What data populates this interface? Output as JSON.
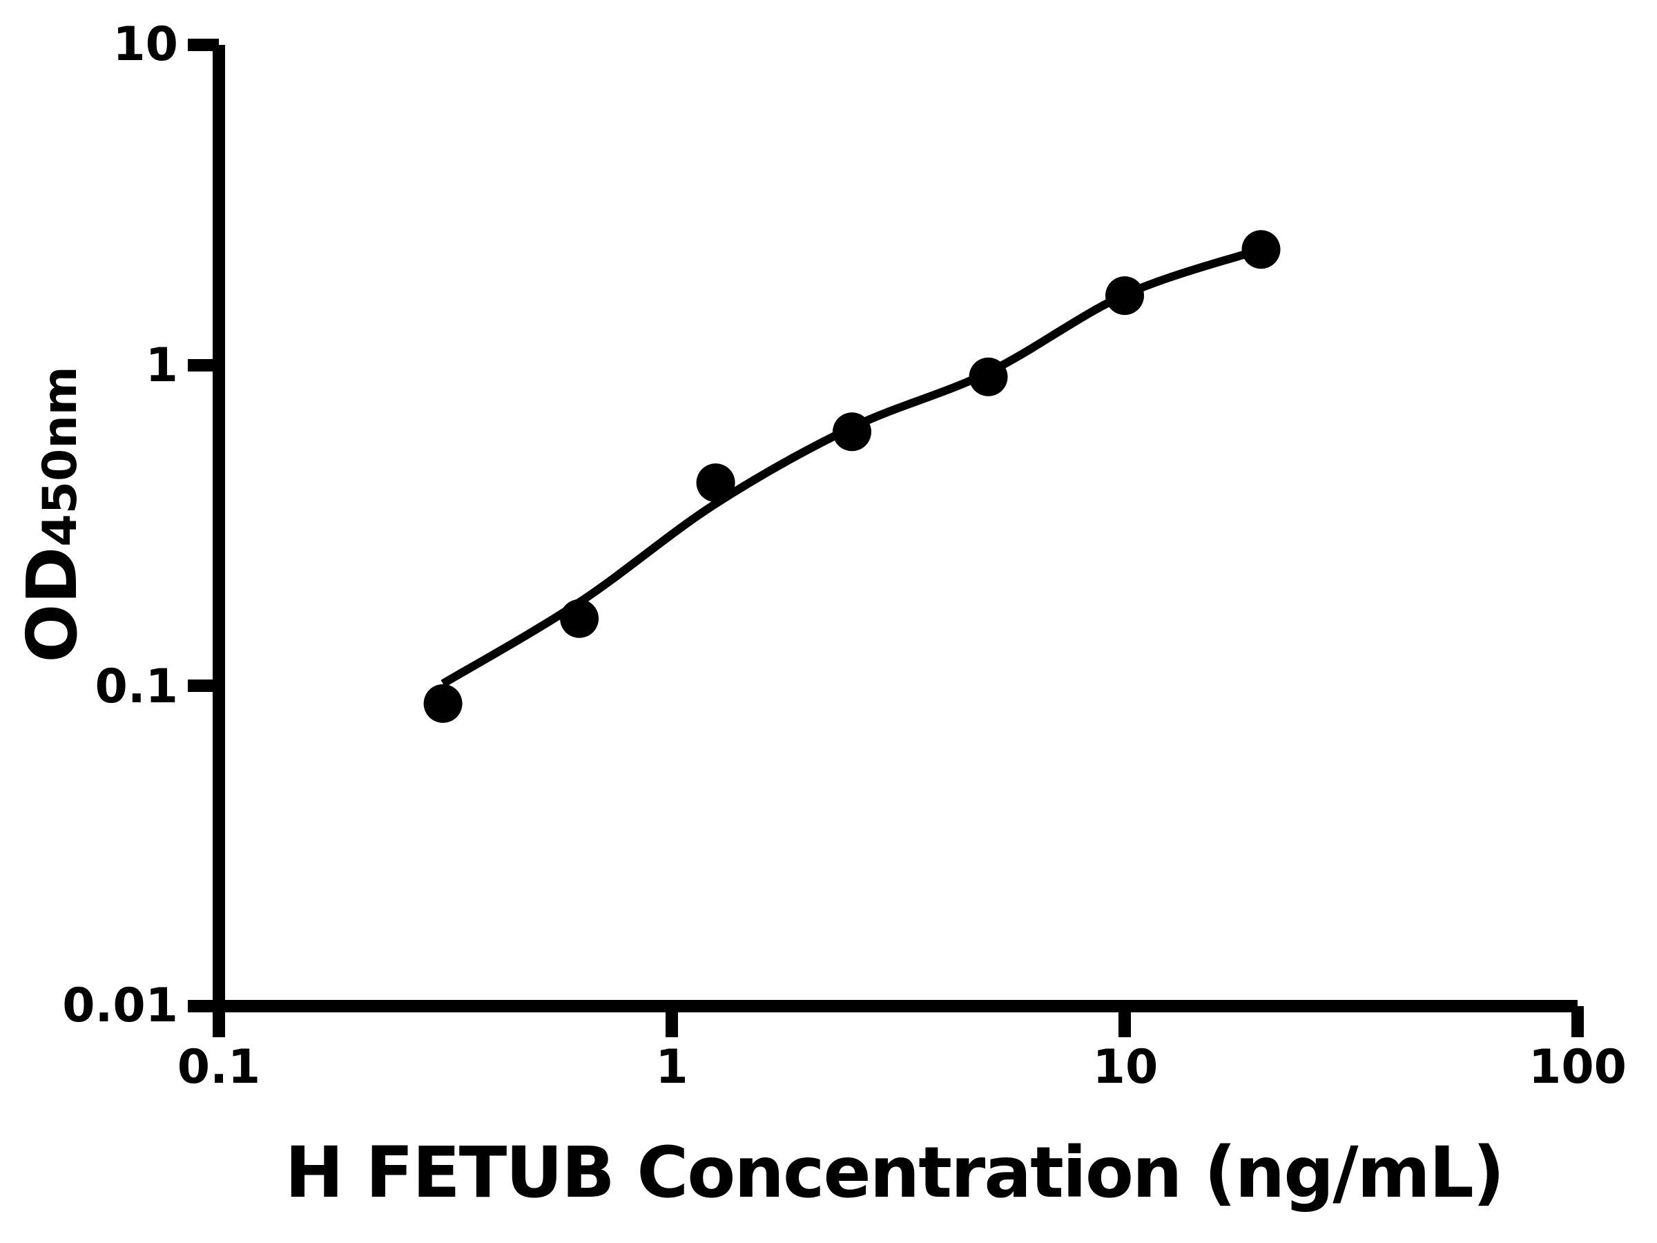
{
  "chart_data": {
    "type": "scatter",
    "title": "",
    "xlabel": "H FETUB Concentration (ng/mL)",
    "ylabel": "OD",
    "ylabel_subscript": "450nm",
    "x_scale": "log",
    "y_scale": "log",
    "xlim": [
      0.1,
      100
    ],
    "ylim": [
      0.01,
      10
    ],
    "grid": false,
    "legend": false,
    "x_axis": {
      "ticks": [
        {
          "value": 0.1,
          "label": "0.1"
        },
        {
          "value": 1,
          "label": "1"
        },
        {
          "value": 10,
          "label": "10"
        },
        {
          "value": 100,
          "label": "100"
        }
      ]
    },
    "y_axis": {
      "ticks": [
        {
          "value": 0.01,
          "label": "0.01"
        },
        {
          "value": 0.1,
          "label": "0.1"
        },
        {
          "value": 1,
          "label": "1"
        },
        {
          "value": 10,
          "label": "10"
        }
      ]
    },
    "series": [
      {
        "name": "standard-curve-points",
        "marker": "circle",
        "points": [
          {
            "x": 0.3125,
            "y": 0.088
          },
          {
            "x": 0.625,
            "y": 0.162
          },
          {
            "x": 1.25,
            "y": 0.43
          },
          {
            "x": 2.5,
            "y": 0.62
          },
          {
            "x": 5,
            "y": 0.92
          },
          {
            "x": 10,
            "y": 1.65
          },
          {
            "x": 20,
            "y": 2.3
          }
        ]
      }
    ],
    "fit_curve": {
      "name": "four-parameter-logistic-fit",
      "anchors": [
        {
          "x": 0.3125,
          "y": 0.1015
        },
        {
          "x": 0.625,
          "y": 0.182
        },
        {
          "x": 1.25,
          "y": 0.37
        },
        {
          "x": 2.5,
          "y": 0.64
        },
        {
          "x": 5,
          "y": 0.95
        },
        {
          "x": 10,
          "y": 1.66
        },
        {
          "x": 20,
          "y": 2.3
        }
      ]
    },
    "colors": {
      "foreground": "#000000",
      "background": "#ffffff",
      "marker": "#000000",
      "curve": "#000000"
    }
  }
}
